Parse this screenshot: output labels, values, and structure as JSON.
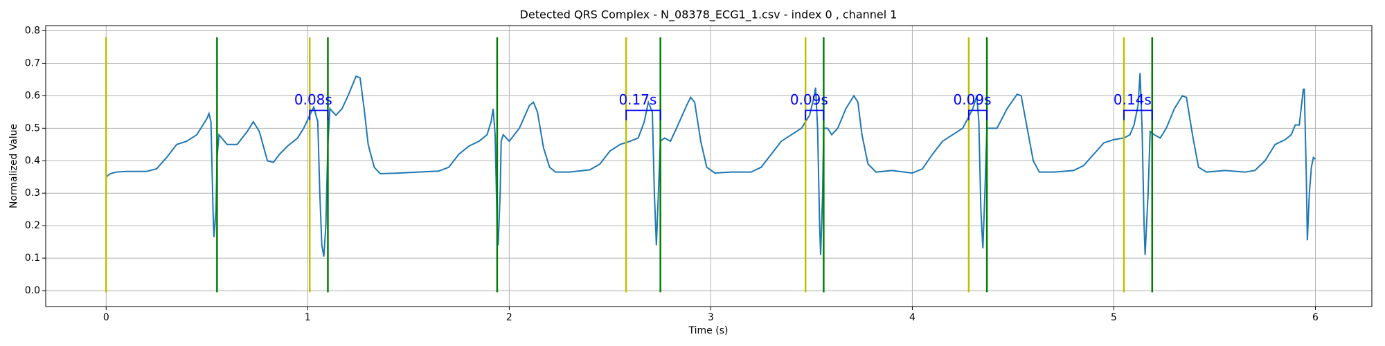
{
  "chart_data": {
    "type": "line",
    "title": "Detected QRS Complex - N_08378_ECG1_1.csv - index 0 , channel 1",
    "xlabel": "Time (s)",
    "ylabel": "Normalized Value",
    "xlim": [
      -0.3,
      6.28
    ],
    "ylim": [
      -0.049,
      0.816
    ],
    "xticks": [
      0,
      1,
      2,
      3,
      4,
      5,
      6
    ],
    "yticks": [
      {
        "value": 0,
        "label": "0.0"
      },
      {
        "value": 0.1,
        "label": "0.1"
      },
      {
        "value": 0.2,
        "label": "0.2"
      },
      {
        "value": 0.3,
        "label": "0.3"
      },
      {
        "value": 0.4,
        "label": "0.4"
      },
      {
        "value": 0.5,
        "label": "0.5"
      },
      {
        "value": 0.6,
        "label": "0.6"
      },
      {
        "value": 0.7,
        "label": "0.7"
      },
      {
        "value": 0.8,
        "label": "0.8"
      }
    ],
    "grid": true,
    "x": [
      0,
      0.02,
      0.05,
      0.1,
      0.2,
      0.25,
      0.3,
      0.35,
      0.4,
      0.45,
      0.48,
      0.5,
      0.51,
      0.52,
      0.53,
      0.535,
      0.545,
      0.55,
      0.56,
      0.6,
      0.65,
      0.7,
      0.73,
      0.76,
      0.8,
      0.83,
      0.86,
      0.9,
      0.95,
      0.98,
      1.01,
      1.03,
      1.05,
      1.06,
      1.07,
      1.08,
      1.09,
      1.1,
      1.11,
      1.14,
      1.17,
      1.2,
      1.24,
      1.26,
      1.28,
      1.3,
      1.33,
      1.36,
      1.45,
      1.55,
      1.65,
      1.7,
      1.75,
      1.8,
      1.85,
      1.89,
      1.91,
      1.92,
      1.93,
      1.94,
      1.945,
      1.955,
      1.96,
      1.97,
      2.0,
      2.05,
      2.1,
      2.12,
      2.14,
      2.17,
      2.2,
      2.23,
      2.3,
      2.4,
      2.45,
      2.5,
      2.55,
      2.6,
      2.64,
      2.67,
      2.69,
      2.71,
      2.72,
      2.73,
      2.74,
      2.75,
      2.77,
      2.8,
      2.83,
      2.88,
      2.9,
      2.92,
      2.95,
      2.98,
      3.02,
      3.1,
      3.2,
      3.25,
      3.3,
      3.35,
      3.4,
      3.45,
      3.49,
      3.51,
      3.52,
      3.53,
      3.54,
      3.545,
      3.555,
      3.56,
      3.58,
      3.6,
      3.63,
      3.67,
      3.71,
      3.73,
      3.75,
      3.78,
      3.82,
      3.9,
      4.0,
      4.05,
      4.1,
      4.15,
      4.2,
      4.25,
      4.3,
      4.32,
      4.33,
      4.34,
      4.35,
      4.36,
      4.37,
      4.39,
      4.42,
      4.47,
      4.52,
      4.54,
      4.57,
      4.6,
      4.63,
      4.7,
      4.8,
      4.85,
      4.9,
      4.95,
      5.0,
      5.05,
      5.08,
      5.1,
      5.12,
      5.13,
      5.14,
      5.15,
      5.155,
      5.17,
      5.18,
      5.2,
      5.23,
      5.26,
      5.3,
      5.34,
      5.36,
      5.39,
      5.42,
      5.46,
      5.55,
      5.65,
      5.7,
      5.75,
      5.8,
      5.85,
      5.88,
      5.9,
      5.92,
      5.94,
      5.945,
      5.955,
      5.96,
      5.97,
      5.98,
      5.99,
      6.0
    ],
    "series": [
      {
        "color": "#1f77b4",
        "values": [
          0.35,
          0.36,
          0.365,
          0.367,
          0.367,
          0.375,
          0.41,
          0.45,
          0.46,
          0.48,
          0.51,
          0.53,
          0.545,
          0.52,
          0.25,
          0.165,
          0.25,
          0.41,
          0.48,
          0.45,
          0.45,
          0.49,
          0.52,
          0.49,
          0.4,
          0.395,
          0.42,
          0.445,
          0.47,
          0.5,
          0.54,
          0.565,
          0.52,
          0.3,
          0.14,
          0.105,
          0.2,
          0.45,
          0.56,
          0.54,
          0.56,
          0.6,
          0.66,
          0.655,
          0.56,
          0.45,
          0.38,
          0.36,
          0.362,
          0.365,
          0.368,
          0.38,
          0.42,
          0.445,
          0.46,
          0.48,
          0.52,
          0.56,
          0.48,
          0.2,
          0.14,
          0.3,
          0.46,
          0.48,
          0.46,
          0.5,
          0.57,
          0.58,
          0.55,
          0.44,
          0.38,
          0.365,
          0.365,
          0.372,
          0.39,
          0.43,
          0.45,
          0.46,
          0.47,
          0.52,
          0.58,
          0.55,
          0.3,
          0.14,
          0.3,
          0.46,
          0.47,
          0.46,
          0.5,
          0.57,
          0.595,
          0.58,
          0.46,
          0.38,
          0.362,
          0.365,
          0.365,
          0.38,
          0.42,
          0.46,
          0.48,
          0.5,
          0.54,
          0.59,
          0.625,
          0.5,
          0.2,
          0.11,
          0.3,
          0.5,
          0.5,
          0.48,
          0.5,
          0.56,
          0.6,
          0.58,
          0.48,
          0.39,
          0.365,
          0.37,
          0.362,
          0.375,
          0.42,
          0.46,
          0.48,
          0.5,
          0.56,
          0.6,
          0.52,
          0.25,
          0.13,
          0.3,
          0.5,
          0.5,
          0.5,
          0.56,
          0.605,
          0.6,
          0.5,
          0.4,
          0.365,
          0.365,
          0.37,
          0.385,
          0.42,
          0.455,
          0.465,
          0.47,
          0.48,
          0.51,
          0.57,
          0.67,
          0.5,
          0.2,
          0.11,
          0.3,
          0.49,
          0.48,
          0.47,
          0.5,
          0.56,
          0.6,
          0.595,
          0.48,
          0.38,
          0.365,
          0.37,
          0.365,
          0.37,
          0.4,
          0.45,
          0.465,
          0.48,
          0.51,
          0.51,
          0.62,
          0.62,
          0.35,
          0.155,
          0.3,
          0.38,
          0.41,
          0.405
        ]
      }
    ],
    "vline_ylim": [
      -0.005,
      0.78
    ],
    "vlines": [
      {
        "color": "#bfbf00",
        "x": [
          0,
          1.01,
          2.58,
          3.47,
          4.28,
          5.05
        ]
      },
      {
        "color": "#008000",
        "x": [
          0.55,
          1.1,
          1.94,
          2.75,
          3.56,
          4.37,
          5.19
        ]
      }
    ],
    "annotation_color": "#0000ff",
    "annotations": [
      {
        "text": "0.08s",
        "x": [
          1.01,
          1.1
        ],
        "y": 0.555,
        "tick": 0.525
      },
      {
        "text": "0.17s",
        "x": [
          2.58,
          2.75
        ],
        "y": 0.555,
        "tick": 0.525
      },
      {
        "text": "0.09s",
        "x": [
          3.47,
          3.56
        ],
        "y": 0.555,
        "tick": 0.525
      },
      {
        "text": "0.09s",
        "x": [
          4.28,
          4.37
        ],
        "y": 0.555,
        "tick": 0.525
      },
      {
        "text": "0.14s",
        "x": [
          5.05,
          5.19
        ],
        "y": 0.555,
        "tick": 0.525
      }
    ]
  }
}
